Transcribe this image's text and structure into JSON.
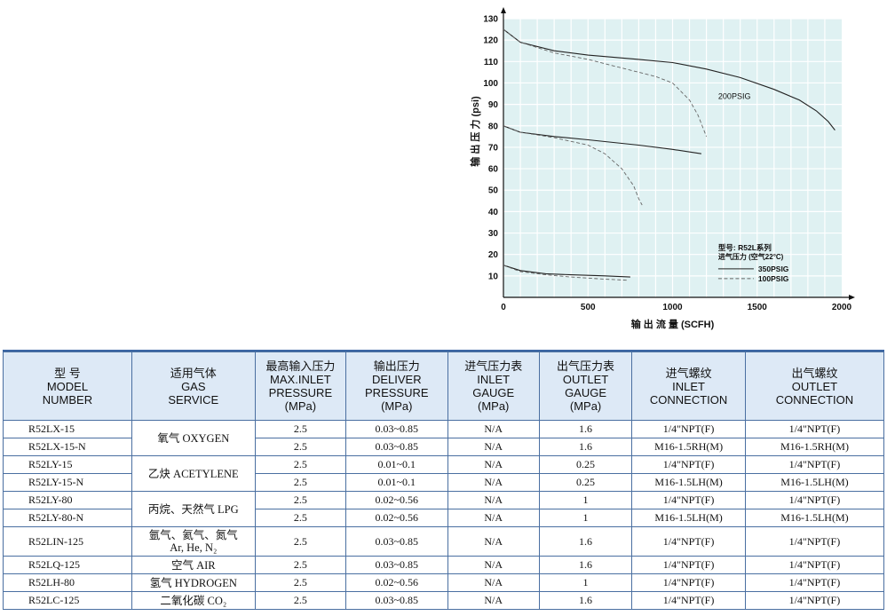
{
  "chart_data": {
    "type": "line",
    "title": "",
    "xlabel": "输 出 流 量 (SCFH)",
    "ylabel": "输 出 压 力 (psi)",
    "xlim": [
      0,
      2000
    ],
    "ylim": [
      0,
      130
    ],
    "xticks": [
      0,
      500,
      1000,
      1500,
      2000
    ],
    "yticks": [
      10,
      20,
      30,
      40,
      50,
      60,
      70,
      80,
      90,
      100,
      110,
      120,
      130
    ],
    "annotation": "200PSIG",
    "legend": {
      "title_line1": "型号: R52L系列",
      "title_line2": "进气压力 (空气22°C)",
      "position": "lower-right",
      "entries": [
        {
          "label": "350PSIG",
          "style": "solid"
        },
        {
          "label": "100PSIG",
          "style": "dashed"
        }
      ]
    },
    "series": [
      {
        "group": "125",
        "style": "solid",
        "x": [
          0,
          100,
          300,
          500,
          800,
          1000,
          1200,
          1400,
          1600,
          1750,
          1850,
          1920,
          1960
        ],
        "y": [
          125,
          119,
          115,
          113,
          111,
          109.5,
          106.5,
          102.5,
          97,
          92,
          87,
          82,
          78
        ]
      },
      {
        "group": "125",
        "style": "dashed",
        "x": [
          0,
          100,
          300,
          500,
          700,
          900,
          1000,
          1100,
          1150,
          1200
        ],
        "y": [
          125,
          119,
          114,
          111,
          107,
          103,
          100,
          92,
          85,
          75
        ]
      },
      {
        "group": "80",
        "style": "solid",
        "x": [
          0,
          100,
          300,
          500,
          800,
          1000,
          1170
        ],
        "y": [
          80,
          77,
          75,
          73.5,
          71,
          69,
          67
        ]
      },
      {
        "group": "80",
        "style": "dashed",
        "x": [
          0,
          100,
          300,
          500,
          600,
          700,
          770,
          800,
          820
        ],
        "y": [
          80,
          77,
          74.5,
          71,
          67,
          60,
          52,
          46,
          43
        ]
      },
      {
        "group": "15",
        "style": "solid",
        "x": [
          0,
          100,
          250,
          400,
          600,
          750
        ],
        "y": [
          15,
          12.5,
          11,
          10.5,
          10,
          9.5
        ]
      },
      {
        "group": "15",
        "style": "dashed",
        "x": [
          0,
          100,
          250,
          400,
          600,
          730
        ],
        "y": [
          15,
          12,
          10.5,
          9.5,
          8.5,
          8
        ]
      }
    ]
  },
  "table": {
    "headers": [
      {
        "zh": "型 号",
        "en": [
          "MODEL",
          "NUMBER"
        ]
      },
      {
        "zh": "适用气体",
        "en": [
          "GAS",
          "SERVICE"
        ]
      },
      {
        "zh": "最高输入压力",
        "en": [
          "MAX.INLET",
          "PRESSURE",
          "(MPa)"
        ]
      },
      {
        "zh": "输出压力",
        "en": [
          "DELIVER",
          "PRESSURE",
          "(MPa)"
        ]
      },
      {
        "zh": "进气压力表",
        "en": [
          "INLET",
          "GAUGE",
          "(MPa)"
        ]
      },
      {
        "zh": "出气压力表",
        "en": [
          "OUTLET",
          "GAUGE",
          "(MPa)"
        ]
      },
      {
        "zh": "进气螺纹",
        "en": [
          "INLET",
          "CONNECTION"
        ]
      },
      {
        "zh": "出气螺纹",
        "en": [
          "OUTLET",
          "CONNECTION"
        ]
      }
    ],
    "rows": [
      {
        "model": "R52LX-15",
        "gas": "氧气 OXYGEN",
        "gas_rows": 2,
        "max_inlet": "2.5",
        "deliver": "0.03~0.85",
        "inlet_gauge": "N/A",
        "outlet_gauge": "1.6",
        "inlet_conn": "1/4\"NPT(F)",
        "outlet_conn": "1/4\"NPT(F)"
      },
      {
        "model": "R52LX-15-N",
        "max_inlet": "2.5",
        "deliver": "0.03~0.85",
        "inlet_gauge": "N/A",
        "outlet_gauge": "1.6",
        "inlet_conn": "M16-1.5RH(M)",
        "outlet_conn": "M16-1.5RH(M)"
      },
      {
        "model": "R52LY-15",
        "gas": "乙炔 ACETYLENE",
        "gas_rows": 2,
        "max_inlet": "2.5",
        "deliver": "0.01~0.1",
        "inlet_gauge": "N/A",
        "outlet_gauge": "0.25",
        "inlet_conn": "1/4\"NPT(F)",
        "outlet_conn": "1/4\"NPT(F)"
      },
      {
        "model": "R52LY-15-N",
        "max_inlet": "2.5",
        "deliver": "0.01~0.1",
        "inlet_gauge": "N/A",
        "outlet_gauge": "0.25",
        "inlet_conn": "M16-1.5LH(M)",
        "outlet_conn": "M16-1.5LH(M)"
      },
      {
        "model": "R52LY-80",
        "gas": "丙烷、天然气 LPG",
        "gas_rows": 2,
        "max_inlet": "2.5",
        "deliver": "0.02~0.56",
        "inlet_gauge": "N/A",
        "outlet_gauge": "1",
        "inlet_conn": "1/4\"NPT(F)",
        "outlet_conn": "1/4\"NPT(F)"
      },
      {
        "model": "R52LY-80-N",
        "max_inlet": "2.5",
        "deliver": "0.02~0.56",
        "inlet_gauge": "N/A",
        "outlet_gauge": "1",
        "inlet_conn": "M16-1.5LH(M)",
        "outlet_conn": "M16-1.5LH(M)"
      },
      {
        "model": "R52LIN-125",
        "gas": "氩气、氦气、氮气",
        "gas2": "Ar, He, N₂",
        "gas_rows": 1,
        "tall": true,
        "max_inlet": "2.5",
        "deliver": "0.03~0.85",
        "inlet_gauge": "N/A",
        "outlet_gauge": "1.6",
        "inlet_conn": "1/4\"NPT(F)",
        "outlet_conn": "1/4\"NPT(F)"
      },
      {
        "model": "R52LQ-125",
        "gas": "空气 AIR",
        "gas_rows": 1,
        "max_inlet": "2.5",
        "deliver": "0.03~0.85",
        "inlet_gauge": "N/A",
        "outlet_gauge": "1.6",
        "inlet_conn": "1/4\"NPT(F)",
        "outlet_conn": "1/4\"NPT(F)"
      },
      {
        "model": "R52LH-80",
        "gas": "氢气 HYDROGEN",
        "gas_rows": 1,
        "max_inlet": "2.5",
        "deliver": "0.02~0.56",
        "inlet_gauge": "N/A",
        "outlet_gauge": "1",
        "inlet_conn": "1/4\"NPT(F)",
        "outlet_conn": "1/4\"NPT(F)"
      },
      {
        "model": "R52LC-125",
        "gas": "二氧化碳 CO₂",
        "gas_rows": 1,
        "max_inlet": "2.5",
        "deliver": "0.03~0.85",
        "inlet_gauge": "N/A",
        "outlet_gauge": "1.6",
        "inlet_conn": "1/4\"NPT(F)",
        "outlet_conn": "1/4\"NPT(F)"
      }
    ]
  }
}
